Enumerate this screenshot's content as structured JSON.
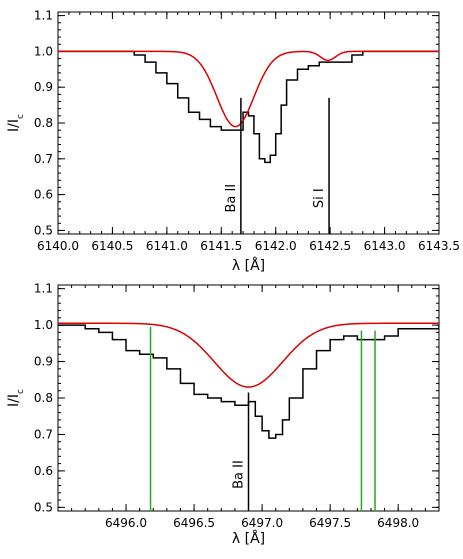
{
  "chart_data": [
    {
      "type": "line",
      "title": "",
      "xlabel": "λ [Å]",
      "ylabel": "I/I",
      "ylabel_sub": "c",
      "xlim": [
        6140.0,
        6143.5
      ],
      "ylim": [
        0.49,
        1.11
      ],
      "xticks": [
        "6140.0",
        "6140.5",
        "6141.0",
        "6141.5",
        "6142.0",
        "6142.5",
        "6143.0",
        "6143.5"
      ],
      "yticks": [
        "0.5",
        "0.6",
        "0.7",
        "0.8",
        "0.9",
        "1.0",
        "1.1"
      ],
      "colors": {
        "observed": "#000000",
        "model": "#dd0000",
        "marker": "#000000"
      },
      "series": [
        {
          "style": "step",
          "x": [
            6140.0,
            6140.5,
            6140.7,
            6140.8,
            6140.9,
            6141.0,
            6141.1,
            6141.2,
            6141.3,
            6141.4,
            6141.5,
            6141.6,
            6141.7,
            6141.75,
            6141.8,
            6141.85,
            6141.9,
            6141.95,
            6142.0,
            6142.05,
            6142.1,
            6142.2,
            6142.3,
            6142.4,
            6142.5,
            6142.7,
            6142.8,
            6143.0,
            6143.5
          ],
          "y": [
            1.0,
            1.0,
            0.99,
            0.97,
            0.94,
            0.91,
            0.87,
            0.83,
            0.81,
            0.79,
            0.78,
            0.78,
            0.83,
            0.82,
            0.77,
            0.7,
            0.69,
            0.71,
            0.77,
            0.85,
            0.92,
            0.95,
            0.96,
            0.97,
            0.97,
            0.99,
            1.0,
            1.0,
            1.0
          ]
        },
        {
          "style": "gaussian",
          "baseline": 1.0,
          "components": [
            {
              "center": 6141.63,
              "depth": 0.21,
              "sigma": 0.17
            },
            {
              "center": 6142.48,
              "depth": 0.025,
              "sigma": 0.07
            }
          ]
        }
      ],
      "line_markers": [
        {
          "x": 6141.68,
          "label": "Ba II"
        },
        {
          "x": 6142.49,
          "label": "Si I"
        }
      ],
      "green_markers": []
    },
    {
      "type": "line",
      "title": "",
      "xlabel": "λ [Å]",
      "ylabel": "I/I",
      "ylabel_sub": "c",
      "xlim": [
        6495.5,
        6498.3
      ],
      "ylim": [
        0.49,
        1.11
      ],
      "xticks": [
        "6496.0",
        "6496.5",
        "6497.0",
        "6497.5",
        "6498.0"
      ],
      "yticks": [
        "0.5",
        "0.6",
        "0.7",
        "0.8",
        "0.9",
        "1.0",
        "1.1"
      ],
      "colors": {
        "observed": "#000000",
        "model": "#dd0000",
        "marker": "#000000",
        "green": "#22aa22"
      },
      "series": [
        {
          "style": "step",
          "x": [
            6495.5,
            6495.7,
            6495.8,
            6495.9,
            6496.0,
            6496.1,
            6496.2,
            6496.3,
            6496.4,
            6496.5,
            6496.6,
            6496.7,
            6496.8,
            6496.9,
            6496.95,
            6497.0,
            6497.05,
            6497.1,
            6497.15,
            6497.2,
            6497.3,
            6497.4,
            6497.5,
            6497.6,
            6497.7,
            6497.8,
            6497.9,
            6498.0,
            6498.3
          ],
          "y": [
            1.0,
            0.99,
            0.98,
            0.96,
            0.93,
            0.92,
            0.91,
            0.88,
            0.84,
            0.81,
            0.8,
            0.79,
            0.78,
            0.79,
            0.75,
            0.71,
            0.69,
            0.7,
            0.74,
            0.8,
            0.88,
            0.93,
            0.96,
            0.97,
            0.96,
            0.96,
            0.97,
            0.99,
            1.0
          ]
        },
        {
          "style": "gaussian",
          "baseline": 1.005,
          "components": [
            {
              "center": 6496.9,
              "depth": 0.175,
              "sigma": 0.25
            }
          ]
        }
      ],
      "line_markers": [
        {
          "x": 6496.9,
          "label": "Ba II"
        }
      ],
      "green_markers": [
        {
          "x": 6496.18,
          "ytop": 0.995
        },
        {
          "x": 6497.73,
          "ytop": 0.985
        },
        {
          "x": 6497.83,
          "ytop": 0.985
        }
      ]
    }
  ]
}
